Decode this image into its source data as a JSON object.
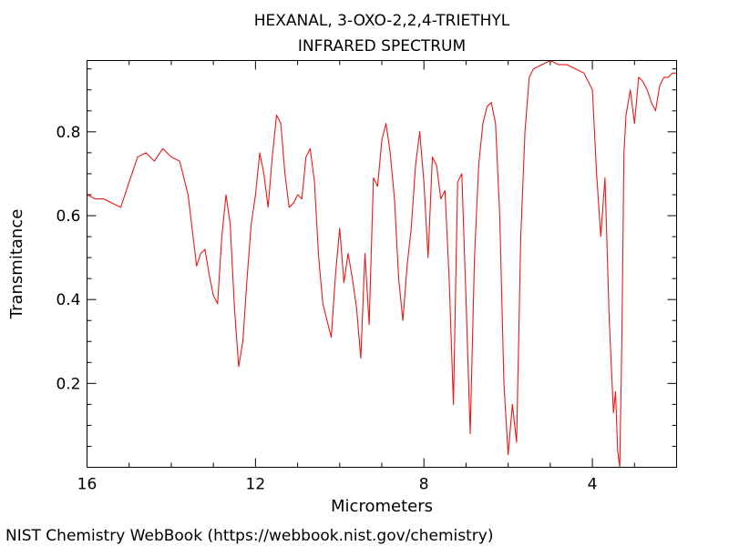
{
  "chart_data": {
    "type": "line",
    "title_lines": [
      "HEXANAL, 3-OXO-2,2,4-TRIETHYL",
      "INFRARED SPECTRUM"
    ],
    "xlabel": "Micrometers",
    "ylabel": "Transmitance",
    "x_axis_reversed": true,
    "xlim": [
      16,
      2
    ],
    "ylim": [
      0.0,
      0.97
    ],
    "x_ticks_major": [
      16,
      12,
      8,
      4
    ],
    "x_tick_labels": [
      "16",
      "12",
      "8",
      "4"
    ],
    "y_ticks_major": [
      0.2,
      0.4,
      0.6,
      0.8
    ],
    "y_tick_labels": [
      "0.2",
      "0.4",
      "0.6",
      "0.8"
    ],
    "grid": false,
    "line_color": "#e8191a",
    "series": [
      {
        "x": [
          16.0,
          15.8,
          15.6,
          15.4,
          15.2,
          15.0,
          14.8,
          14.6,
          14.4,
          14.2,
          14.0,
          13.8,
          13.6,
          13.4,
          13.3,
          13.2,
          13.1,
          13.0,
          12.9,
          12.8,
          12.7,
          12.6,
          12.5,
          12.4,
          12.3,
          12.2,
          12.1,
          12.0,
          11.9,
          11.8,
          11.7,
          11.6,
          11.5,
          11.4,
          11.3,
          11.2,
          11.1,
          11.0,
          10.9,
          10.8,
          10.7,
          10.6,
          10.5,
          10.4,
          10.3,
          10.2,
          10.1,
          10.0,
          9.9,
          9.8,
          9.7,
          9.6,
          9.5,
          9.4,
          9.3,
          9.2,
          9.1,
          9.0,
          8.9,
          8.8,
          8.7,
          8.6,
          8.5,
          8.4,
          8.3,
          8.2,
          8.1,
          8.0,
          7.9,
          7.8,
          7.7,
          7.6,
          7.5,
          7.4,
          7.3,
          7.2,
          7.1,
          7.0,
          6.9,
          6.8,
          6.7,
          6.6,
          6.5,
          6.4,
          6.3,
          6.2,
          6.1,
          6.0,
          5.9,
          5.8,
          5.7,
          5.6,
          5.5,
          5.4,
          5.2,
          5.0,
          4.8,
          4.6,
          4.4,
          4.2,
          4.0,
          3.9,
          3.8,
          3.7,
          3.6,
          3.5,
          3.45,
          3.4,
          3.35,
          3.3,
          3.25,
          3.2,
          3.1,
          3.0,
          2.9,
          2.8,
          2.7,
          2.6,
          2.5,
          2.4,
          2.3,
          2.2,
          2.1,
          2.0
        ],
        "y": [
          0.65,
          0.64,
          0.64,
          0.63,
          0.62,
          0.68,
          0.74,
          0.75,
          0.73,
          0.76,
          0.74,
          0.73,
          0.65,
          0.48,
          0.51,
          0.52,
          0.46,
          0.41,
          0.39,
          0.55,
          0.65,
          0.58,
          0.38,
          0.24,
          0.3,
          0.45,
          0.58,
          0.65,
          0.75,
          0.7,
          0.62,
          0.74,
          0.84,
          0.82,
          0.7,
          0.62,
          0.63,
          0.65,
          0.64,
          0.74,
          0.76,
          0.68,
          0.5,
          0.39,
          0.35,
          0.31,
          0.46,
          0.57,
          0.44,
          0.51,
          0.45,
          0.38,
          0.26,
          0.51,
          0.34,
          0.69,
          0.67,
          0.78,
          0.82,
          0.75,
          0.64,
          0.45,
          0.35,
          0.48,
          0.57,
          0.72,
          0.8,
          0.68,
          0.5,
          0.74,
          0.72,
          0.64,
          0.66,
          0.45,
          0.15,
          0.68,
          0.7,
          0.4,
          0.08,
          0.5,
          0.72,
          0.82,
          0.86,
          0.87,
          0.82,
          0.6,
          0.2,
          0.03,
          0.15,
          0.06,
          0.55,
          0.8,
          0.93,
          0.95,
          0.96,
          0.97,
          0.96,
          0.96,
          0.95,
          0.94,
          0.9,
          0.7,
          0.55,
          0.69,
          0.35,
          0.13,
          0.18,
          0.04,
          0.0,
          0.3,
          0.75,
          0.84,
          0.9,
          0.82,
          0.93,
          0.92,
          0.9,
          0.87,
          0.85,
          0.91,
          0.93,
          0.93,
          0.94,
          0.94
        ]
      }
    ]
  },
  "footer": {
    "credit": "NIST Chemistry WebBook (https://webbook.nist.gov/chemistry)"
  }
}
